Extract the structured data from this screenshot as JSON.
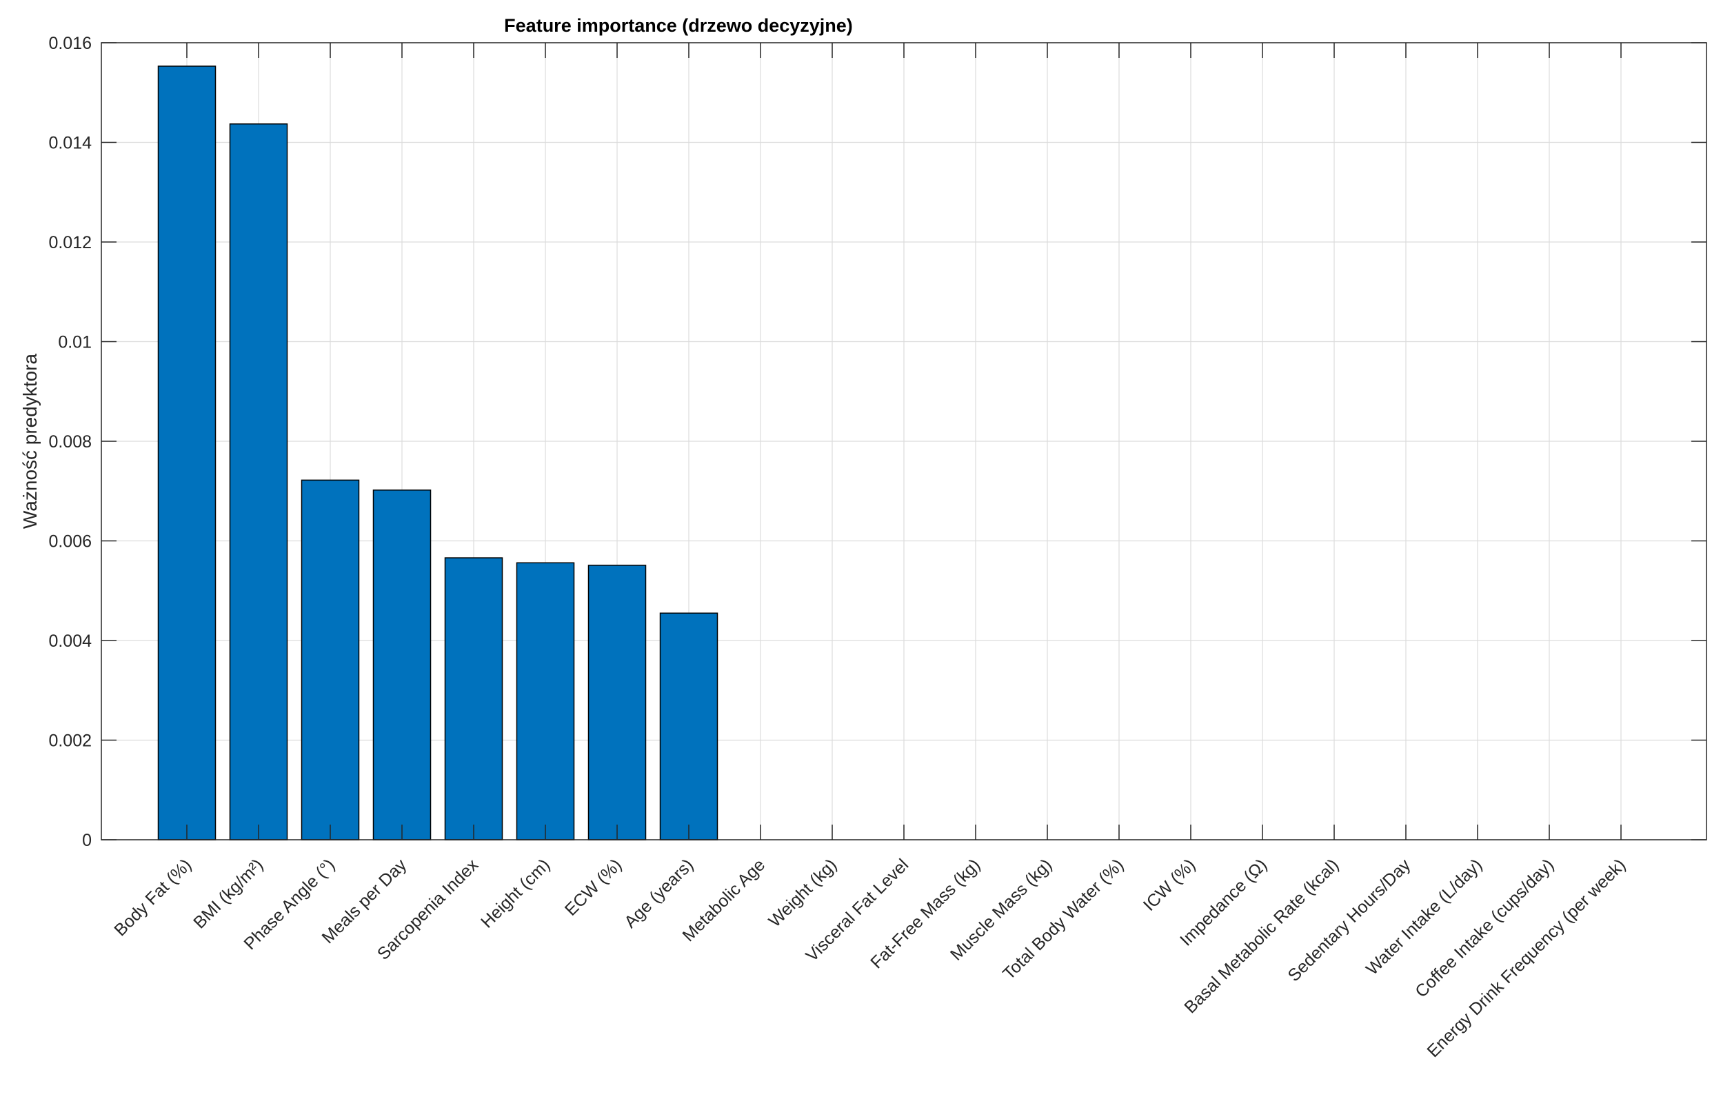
{
  "chart_data": {
    "type": "bar",
    "title": "Feature importance (drzewo decyzyjne)",
    "xlabel": "",
    "ylabel": "Ważność predyktora",
    "ylim": [
      0,
      0.016
    ],
    "yticks": [
      "0",
      "0.002",
      "0.004",
      "0.006",
      "0.008",
      "0.01",
      "0.012",
      "0.014",
      "0.016"
    ],
    "yticks_values": [
      0,
      0.002,
      0.004,
      0.006,
      0.008,
      0.01,
      0.012,
      0.014,
      0.016
    ],
    "grid": true,
    "categories": [
      "Body Fat (%)",
      "BMI (kg/m²)",
      "Phase Angle (°)",
      "Meals per Day",
      "Sarcopenia Index",
      "Height (cm)",
      "ECW (%)",
      "Age (years)",
      "Metabolic Age",
      "Weight (kg)",
      "Visceral Fat Level",
      "Fat-Free Mass (kg)",
      "Muscle Mass (kg)",
      "Total Body Water (%)",
      "ICW (%)",
      "Impedance (Ω)",
      "Basal Metabolic Rate (kcal)",
      "Sedentary Hours/Day",
      "Water Intake (L/day)",
      "Coffee Intake (cups/day)",
      "Energy Drink Frequency (per week)"
    ],
    "values": [
      0.01553,
      0.01437,
      0.00722,
      0.00702,
      0.00566,
      0.00556,
      0.00551,
      0.00455,
      0,
      0,
      0,
      0,
      0,
      0,
      0,
      0,
      0,
      0,
      0,
      0,
      0
    ],
    "bar_color": "#0072BD",
    "edge_color": "#000000"
  }
}
